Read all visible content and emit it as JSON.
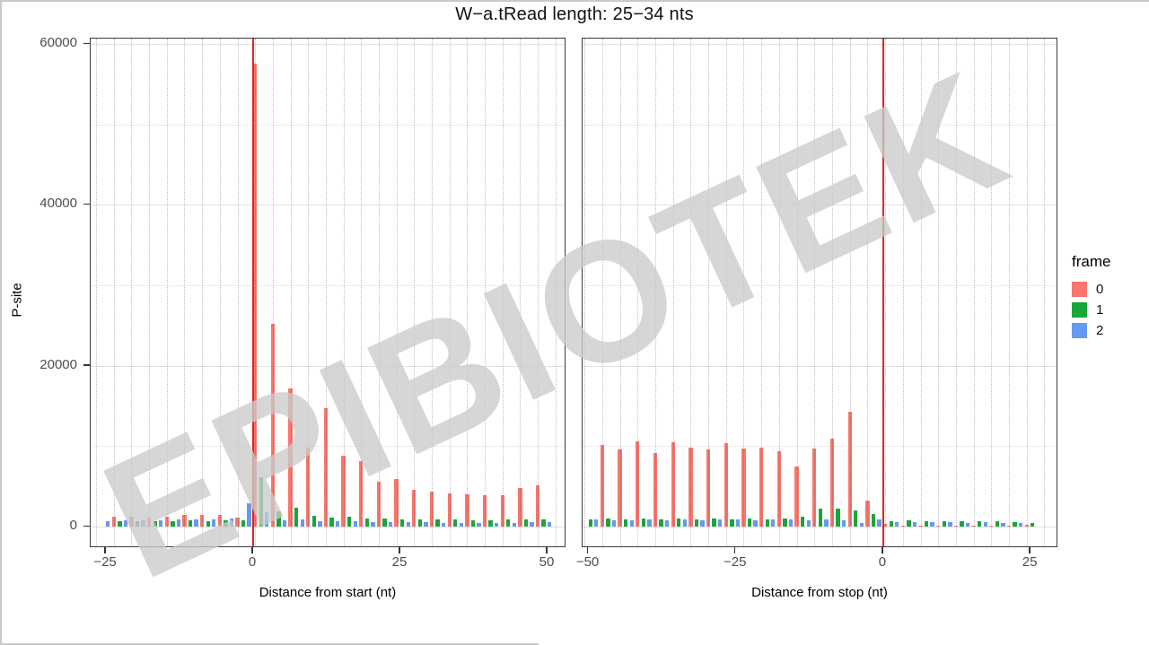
{
  "watermark": "EPIBIOTEK",
  "chart_data": {
    "type": "bar",
    "title": "W−a.tRead length: 25−34 nts",
    "ylabel": "P-site",
    "ylim": [
      0,
      60000
    ],
    "yticks": [
      0,
      20000,
      40000,
      60000
    ],
    "yminor": [
      10000,
      30000,
      50000
    ],
    "grid": "horizontal solid light gray, vertical dotted every 3 nt",
    "zero_line_color": "#DE2321",
    "legend": {
      "title": "frame",
      "position": "right",
      "entries": [
        {
          "label": "0",
          "color": "#F8766D"
        },
        {
          "label": "1",
          "color": "#1AA63B"
        },
        {
          "label": "2",
          "color": "#6699F0"
        }
      ]
    },
    "frame_rule": "bar color = frame ((x mod 3)+3) mod 3 ; 0=red 1=green 2=blue",
    "panels": [
      {
        "xlabel": "Distance from start (nt)",
        "xticks": [
          -25,
          0,
          25,
          50
        ],
        "xlim": [
          -27.6,
          53.2
        ],
        "vline_x": 0,
        "x_start": -25,
        "values": [
          700,
          1200,
          650,
          800,
          1250,
          700,
          750,
          1100,
          650,
          800,
          1250,
          700,
          850,
          1500,
          750,
          900,
          1400,
          700,
          850,
          1450,
          750,
          1050,
          1150,
          800,
          2900,
          57500,
          6100,
          1750,
          25200,
          1900,
          800,
          17200,
          2300,
          900,
          9800,
          1300,
          700,
          14700,
          1100,
          700,
          8800,
          1200,
          650,
          8100,
          1000,
          600,
          5600,
          950,
          550,
          5900,
          900,
          550,
          4600,
          900,
          550,
          4300,
          850,
          500,
          4100,
          850,
          500,
          4000,
          800,
          500,
          3850,
          800,
          500,
          3900,
          850,
          500,
          4800,
          900,
          550,
          5100,
          900,
          600
        ]
      },
      {
        "xlabel": "Distance from stop (nt)",
        "xticks": [
          -50,
          -25,
          0,
          25
        ],
        "xlim": [
          -51.0,
          29.7
        ],
        "vline_x": 0,
        "x_start": -50,
        "values": [
          900,
          850,
          10200,
          950,
          800,
          9600,
          900,
          800,
          10600,
          950,
          850,
          9100,
          900,
          800,
          10500,
          950,
          850,
          9800,
          900,
          800,
          9600,
          950,
          850,
          10400,
          900,
          850,
          9700,
          950,
          800,
          9800,
          900,
          850,
          9400,
          1000,
          850,
          7500,
          1250,
          800,
          9700,
          2250,
          850,
          10900,
          2250,
          800,
          14300,
          2050,
          500,
          3200,
          1600,
          900,
          300,
          700,
          550,
          100,
          750,
          600,
          100,
          700,
          550,
          80,
          700,
          550,
          80,
          650,
          500,
          60,
          700,
          550,
          60,
          650,
          500,
          50,
          600,
          450,
          200,
          400
        ]
      }
    ]
  }
}
